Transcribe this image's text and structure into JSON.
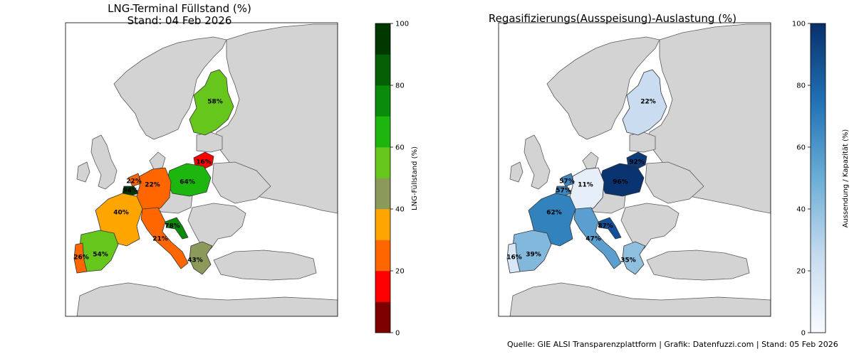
{
  "left_panel": {
    "title_line1": "LNG-Terminal Füllstand (%)",
    "title_line2": "Stand: 04 Feb 2026",
    "colorbar_label": "LNG-Füllstand (%)",
    "colorbar_ticks": [
      "0",
      "20",
      "40",
      "60",
      "80",
      "100"
    ],
    "colorbar_bins": [
      "#7f0000",
      "#ff0000",
      "#ff6600",
      "#ffa500",
      "#8b9a5b",
      "#66c61c",
      "#1db60e",
      "#0a8c0a",
      "#056005",
      "#003800"
    ],
    "countries": [
      {
        "key": "finland",
        "label": "58%",
        "value": 58,
        "color": "#66c61c"
      },
      {
        "key": "lithuania",
        "label": "16%",
        "value": 16,
        "color": "#ff0000"
      },
      {
        "key": "poland",
        "label": "64%",
        "value": 64,
        "color": "#1db60e"
      },
      {
        "key": "germany",
        "label": "22%",
        "value": 22,
        "color": "#ff6600"
      },
      {
        "key": "netherlands",
        "label": "22%",
        "value": 22,
        "color": "#ff6600"
      },
      {
        "key": "belgium",
        "label": "94%",
        "value": 94,
        "color": "#003800"
      },
      {
        "key": "france",
        "label": "40%",
        "value": 40,
        "color": "#ffa500"
      },
      {
        "key": "croatia",
        "label": "78%",
        "value": 78,
        "color": "#0a8c0a"
      },
      {
        "key": "italy",
        "label": "21%",
        "value": 21,
        "color": "#ff6600"
      },
      {
        "key": "greece",
        "label": "43%",
        "value": 43,
        "color": "#8b9a5b"
      },
      {
        "key": "spain",
        "label": "54%",
        "value": 54,
        "color": "#66c61c"
      },
      {
        "key": "portugal",
        "label": "26%",
        "value": 26,
        "color": "#ff6600"
      }
    ]
  },
  "right_panel": {
    "title": "Regasifizierungs(Ausspeisung)-Auslastung (%)",
    "colorbar_label": "Aussendung / Kapazität (%)",
    "colorbar_ticks": [
      "0",
      "20",
      "40",
      "60",
      "80",
      "100"
    ],
    "colorbar_stops": [
      "#f7fbff",
      "#c6dbef",
      "#6baed6",
      "#2171b5",
      "#08306b"
    ],
    "countries": [
      {
        "key": "finland",
        "label": "22%",
        "value": 22,
        "color": "#c9dcf0"
      },
      {
        "key": "lithuania",
        "label": "92%",
        "value": 92,
        "color": "#0c3a7a"
      },
      {
        "key": "poland",
        "label": "96%",
        "value": 96,
        "color": "#0a3470"
      },
      {
        "key": "germany",
        "label": "11%",
        "value": 11,
        "color": "#e6eff9"
      },
      {
        "key": "netherlands",
        "label": "57%",
        "value": 57,
        "color": "#3d87c1"
      },
      {
        "key": "belgium",
        "label": "57%",
        "value": 57,
        "color": "#3d87c1"
      },
      {
        "key": "france",
        "label": "62%",
        "value": 62,
        "color": "#3282bd"
      },
      {
        "key": "croatia",
        "label": "87%",
        "value": 87,
        "color": "#12509a"
      },
      {
        "key": "italy",
        "label": "47%",
        "value": 47,
        "color": "#5a9fcf"
      },
      {
        "key": "greece",
        "label": "35%",
        "value": 35,
        "color": "#8fbfde"
      },
      {
        "key": "spain",
        "label": "39%",
        "value": 39,
        "color": "#82b8db"
      },
      {
        "key": "portugal",
        "label": "16%",
        "value": 16,
        "color": "#d7e6f4"
      }
    ]
  },
  "footer": "Quelle: GIE ALSI Transparenzplattform | Grafik: Datenfuzzi.com | Stand: 05 Feb 2026"
}
